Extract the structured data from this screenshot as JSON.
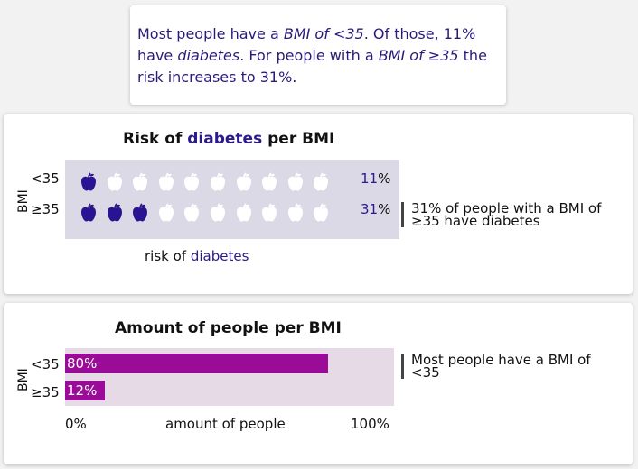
{
  "summary": {
    "parts": [
      "Most people have a ",
      "BMI of <35",
      ". Of those, 11% have ",
      "diabetes",
      ". For people with a ",
      "BMI of ≥35",
      " the risk increases to 31%."
    ]
  },
  "risk_card": {
    "title_pre": "Risk of ",
    "title_hl": "diabetes",
    "title_post": " per BMI",
    "axis_label": "BMI",
    "x_label_pre": "risk of ",
    "x_label_hl": "diabetes",
    "rows": [
      {
        "label": "<35",
        "pct_num": "11",
        "pct_sign": "%"
      },
      {
        "label": "≥35",
        "pct_num": "31",
        "pct_sign": "%"
      }
    ],
    "annotation": "31% of people with a BMI of ≥35 have diabetes",
    "icon": "apple-icon"
  },
  "amount_card": {
    "title": "Amount of people per BMI",
    "axis_label": "BMI",
    "x_label": "amount of people",
    "x_min_label": "0%",
    "x_max_label": "100%",
    "annotation": "Most people have a BMI of <35"
  },
  "colors": {
    "accent": "#2a1a8c",
    "apple_filled": "#2a1390",
    "apple_empty": "#ffffff",
    "risk_panel_bg": "#dcd9e6",
    "bar": "#9a0c98",
    "bar_panel_bg": "#e6dae6"
  },
  "chart_data": [
    {
      "type": "bar",
      "title": "Risk of diabetes per BMI",
      "xlabel": "risk of diabetes",
      "ylabel": "BMI",
      "categories": [
        "<35",
        "≥35"
      ],
      "values": [
        11,
        31
      ],
      "unit": "%",
      "icons_per_row": 10,
      "filled_icons": [
        1,
        3
      ]
    },
    {
      "type": "bar",
      "title": "Amount of people per BMI",
      "xlabel": "amount of people",
      "ylabel": "BMI",
      "categories": [
        "<35",
        "≥35"
      ],
      "values": [
        80,
        12
      ],
      "unit": "%",
      "xlim": [
        0,
        100
      ]
    }
  ]
}
